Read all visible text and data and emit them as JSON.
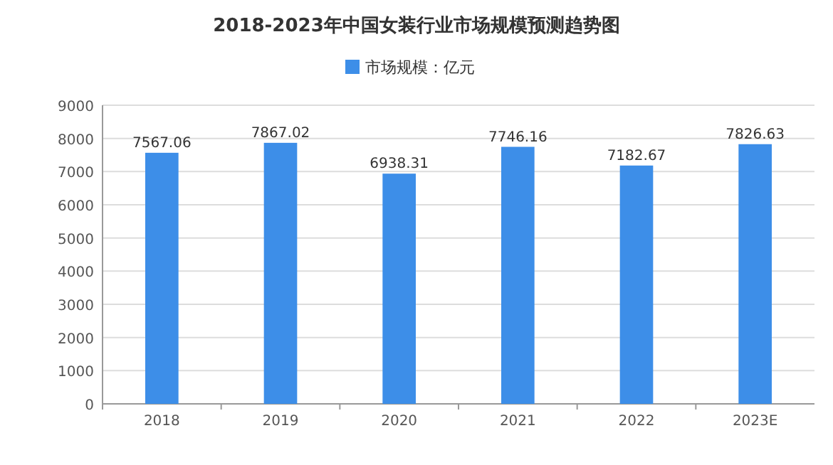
{
  "chart_data": {
    "type": "bar",
    "title": "2018-2023年中国女装行业市场规模预测趋势图",
    "categories": [
      "2018",
      "2019",
      "2020",
      "2021",
      "2022",
      "2023E"
    ],
    "series": [
      {
        "name": "市场规模：亿元",
        "color": "#3d8ee8",
        "values": [
          7567.06,
          7867.02,
          6938.31,
          7746.16,
          7182.67,
          7826.63
        ]
      }
    ],
    "ylim": [
      0,
      9000
    ],
    "yticks": [
      0,
      1000,
      2000,
      3000,
      4000,
      5000,
      6000,
      7000,
      8000,
      9000
    ],
    "grid": "y",
    "legend": "top",
    "data_labels": true
  }
}
